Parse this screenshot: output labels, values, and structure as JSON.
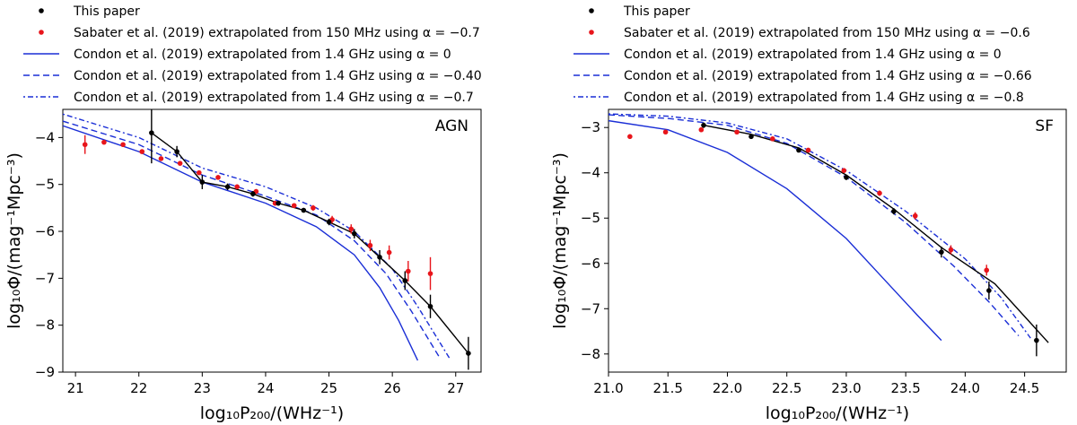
{
  "chart_data": [
    {
      "type": "scatter",
      "panel_label": "AGN",
      "xlabel": "log₁₀P₂₀₀/(WHz⁻¹)",
      "ylabel": "log₁₀Φ/(mag⁻¹Mpc⁻³)",
      "xlim": [
        20.8,
        27.4
      ],
      "ylim": [
        -9.0,
        -3.4
      ],
      "xticks": [
        21,
        22,
        23,
        24,
        25,
        26,
        27
      ],
      "yticks": [
        -9,
        -8,
        -7,
        -6,
        -5,
        -4
      ],
      "legend": [
        {
          "key": "this_paper",
          "label": "This paper",
          "color": "#000000",
          "marker": "dot"
        },
        {
          "key": "sabater",
          "label": "Sabater et al. (2019) extrapolated from 150 MHz using α = −0.7",
          "color": "#e8151b",
          "marker": "dot"
        },
        {
          "key": "condon0",
          "label": "Condon et al. (2019) extrapolated from 1.4 GHz using α = 0",
          "color": "#1a2ed6",
          "line": "solid"
        },
        {
          "key": "condon1",
          "label": "Condon et al. (2019) extrapolated from 1.4 GHz using α = −0.40",
          "color": "#1a2ed6",
          "line": "dashed"
        },
        {
          "key": "condon2",
          "label": "Condon et al. (2019) extrapolated from 1.4 GHz using α = −0.7",
          "color": "#1a2ed6",
          "line": "dashdot"
        }
      ],
      "this_paper": {
        "x": [
          22.2,
          22.6,
          23.0,
          23.4,
          23.8,
          24.2,
          24.6,
          25.0,
          25.4,
          25.8,
          26.2,
          26.6,
          27.2
        ],
        "y": [
          -3.9,
          -4.3,
          -4.95,
          -5.05,
          -5.2,
          -5.4,
          -5.55,
          -5.8,
          -6.05,
          -6.55,
          -7.05,
          -7.6,
          -8.6
        ],
        "err": [
          0.65,
          0.12,
          0.15,
          0.07,
          0.06,
          0.05,
          0.05,
          0.07,
          0.1,
          0.15,
          0.2,
          0.25,
          0.35
        ]
      },
      "sabater": {
        "x": [
          21.15,
          21.45,
          21.75,
          22.05,
          22.35,
          22.65,
          22.95,
          23.25,
          23.55,
          23.85,
          24.15,
          24.45,
          24.75,
          25.05,
          25.35,
          25.65,
          25.95,
          26.25,
          26.6
        ],
        "y": [
          -4.15,
          -4.1,
          -4.15,
          -4.3,
          -4.45,
          -4.55,
          -4.75,
          -4.85,
          -5.05,
          -5.15,
          -5.4,
          -5.45,
          -5.5,
          -5.75,
          -5.95,
          -6.3,
          -6.45,
          -6.85,
          -6.9
        ],
        "err": [
          0.2,
          0.05,
          0.04,
          0.04,
          0.04,
          0.04,
          0.05,
          0.05,
          0.05,
          0.05,
          0.05,
          0.05,
          0.06,
          0.08,
          0.1,
          0.12,
          0.15,
          0.22,
          0.35
        ]
      },
      "curves": {
        "condon0": {
          "x": [
            20.8,
            22.0,
            23.0,
            24.0,
            24.8,
            25.4,
            25.8,
            26.1,
            26.4
          ],
          "y": [
            -3.75,
            -4.3,
            -4.95,
            -5.4,
            -5.9,
            -6.5,
            -7.2,
            -7.9,
            -8.75
          ]
        },
        "condon1": {
          "x": [
            20.8,
            22.0,
            23.0,
            24.0,
            24.8,
            25.4,
            25.9,
            26.3,
            26.75
          ],
          "y": [
            -3.65,
            -4.15,
            -4.8,
            -5.25,
            -5.65,
            -6.2,
            -6.9,
            -7.7,
            -8.7
          ]
        },
        "condon2": {
          "x": [
            20.8,
            22.0,
            23.0,
            24.0,
            24.8,
            25.4,
            26.0,
            26.4,
            26.9
          ],
          "y": [
            -3.5,
            -4.0,
            -4.65,
            -5.05,
            -5.5,
            -6.0,
            -6.8,
            -7.6,
            -8.7
          ]
        }
      }
    },
    {
      "type": "scatter",
      "panel_label": "SF",
      "xlabel": "log₁₀P₂₀₀/(WHz⁻¹)",
      "ylabel": "log₁₀Φ/(mag⁻¹Mpc⁻³)",
      "xlim": [
        21.0,
        24.85
      ],
      "ylim": [
        -8.4,
        -2.6
      ],
      "xticks": [
        21.0,
        21.5,
        22.0,
        22.5,
        23.0,
        23.5,
        24.0,
        24.5
      ],
      "xtick_labels": [
        "21.0",
        "21.5",
        "22.0",
        "22.5",
        "23.0",
        "23.5",
        "24.0",
        "24.5"
      ],
      "yticks": [
        -8,
        -7,
        -6,
        -5,
        -4,
        -3
      ],
      "legend": [
        {
          "key": "this_paper",
          "label": "This paper",
          "color": "#000000",
          "marker": "dot"
        },
        {
          "key": "sabater",
          "label": "Sabater et al. (2019) extrapolated from 150 MHz using α = −0.6",
          "color": "#e8151b",
          "marker": "dot"
        },
        {
          "key": "condon0",
          "label": "Condon et al. (2019) extrapolated from 1.4 GHz using α = 0",
          "color": "#1a2ed6",
          "line": "solid"
        },
        {
          "key": "condon1",
          "label": "Condon et al. (2019) extrapolated from 1.4 GHz using α = −0.66",
          "color": "#1a2ed6",
          "line": "dashed"
        },
        {
          "key": "condon2",
          "label": "Condon et al. (2019) extrapolated from 1.4 GHz using α = −0.8",
          "color": "#1a2ed6",
          "line": "dashdot"
        }
      ],
      "this_paper": {
        "x": [
          21.8,
          22.2,
          22.6,
          23.0,
          23.4,
          23.8,
          24.2,
          24.6
        ],
        "y": [
          -2.95,
          -3.2,
          -3.5,
          -4.1,
          -4.85,
          -5.75,
          -6.6,
          -7.7
        ],
        "err": [
          0.06,
          0.05,
          0.05,
          0.06,
          0.07,
          0.12,
          0.2,
          0.35
        ]
      },
      "sabater": {
        "x": [
          21.18,
          21.48,
          21.78,
          22.08,
          22.38,
          22.68,
          22.98,
          23.28,
          23.58,
          23.88,
          24.18
        ],
        "y": [
          -3.2,
          -3.1,
          -3.05,
          -3.1,
          -3.25,
          -3.5,
          -3.95,
          -4.45,
          -4.95,
          -5.7,
          -6.15
        ],
        "err": [
          0.03,
          0.03,
          0.03,
          0.03,
          0.03,
          0.04,
          0.05,
          0.06,
          0.08,
          0.1,
          0.12
        ]
      },
      "fit_line": {
        "x": [
          21.8,
          22.2,
          22.6,
          23.0,
          23.4,
          23.8,
          24.25,
          24.7
        ],
        "y": [
          -2.95,
          -3.15,
          -3.45,
          -4.05,
          -4.8,
          -5.65,
          -6.45,
          -7.75
        ]
      },
      "curves": {
        "condon0": {
          "x": [
            21.0,
            21.5,
            22.0,
            22.5,
            23.0,
            23.3,
            23.6,
            23.8
          ],
          "y": [
            -2.85,
            -3.05,
            -3.55,
            -4.35,
            -5.45,
            -6.3,
            -7.15,
            -7.7
          ]
        },
        "condon1": {
          "x": [
            21.0,
            21.5,
            22.0,
            22.5,
            23.0,
            23.5,
            23.9,
            24.2,
            24.45
          ],
          "y": [
            -2.72,
            -2.8,
            -2.95,
            -3.35,
            -4.1,
            -5.1,
            -6.05,
            -6.85,
            -7.6
          ]
        },
        "condon2": {
          "x": [
            21.0,
            21.5,
            22.0,
            22.5,
            23.0,
            23.5,
            24.0,
            24.3,
            24.55
          ],
          "y": [
            -2.7,
            -2.75,
            -2.9,
            -3.25,
            -3.95,
            -4.85,
            -5.9,
            -6.75,
            -7.65
          ]
        }
      }
    }
  ]
}
